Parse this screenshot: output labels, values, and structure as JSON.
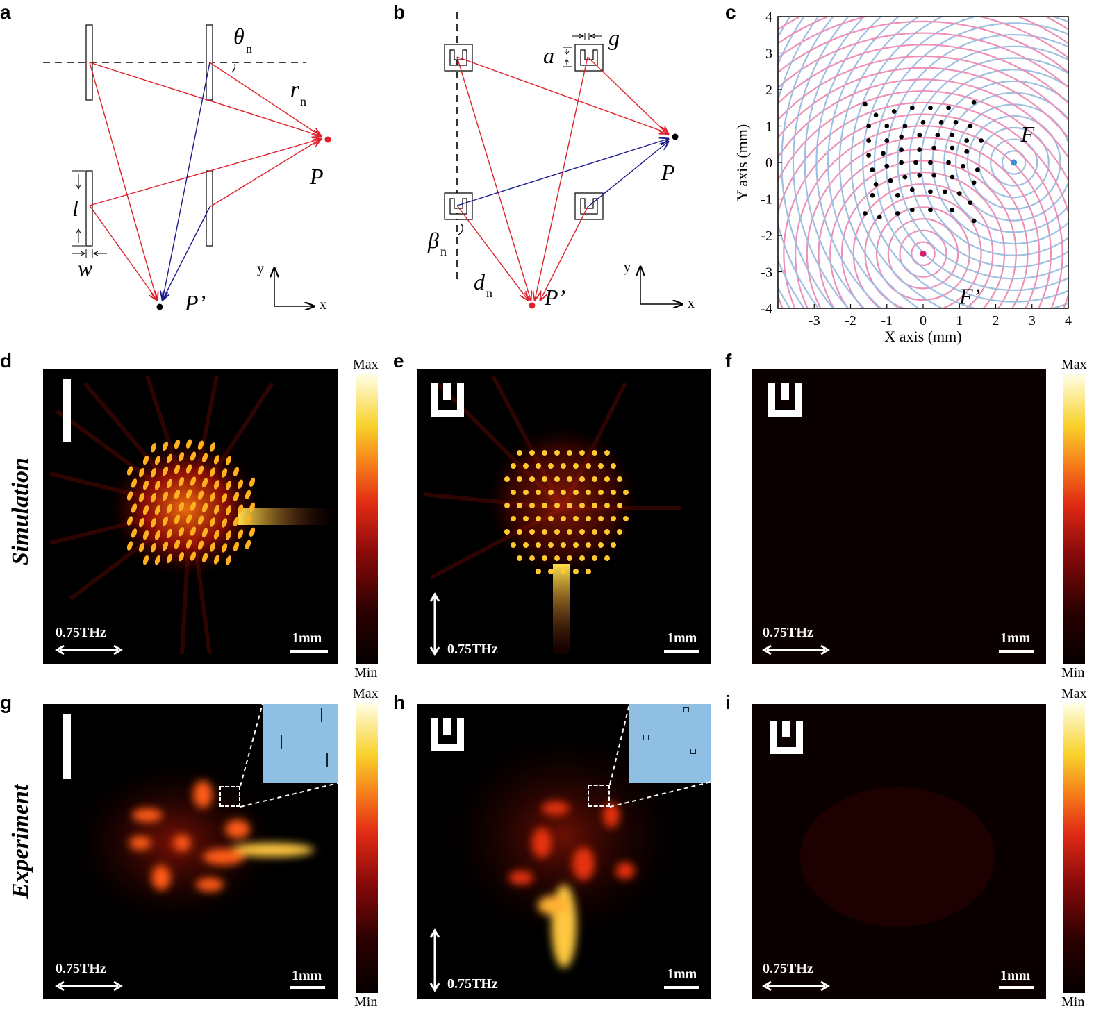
{
  "panel_labels": {
    "a": "a",
    "b": "b",
    "c": "c",
    "d": "d",
    "e": "e",
    "f": "f",
    "g": "g",
    "h": "h",
    "i": "i"
  },
  "row_labels": {
    "sim": "Simulation",
    "exp": "Experiment"
  },
  "diagram_a": {
    "theta": "θ",
    "theta_sub": "n",
    "r": "r",
    "r_sub": "n",
    "P": "P",
    "Pp": "P’",
    "l": "l",
    "w": "w",
    "y": "y",
    "x": "x"
  },
  "diagram_b": {
    "a": "a",
    "g": "g",
    "P": "P",
    "Pp": "P’",
    "beta": "β",
    "beta_sub": "n",
    "d": "d",
    "d_sub": "n",
    "y": "y",
    "x": "x"
  },
  "chart_c_text": {
    "F": "F",
    "Fp": "F’"
  },
  "field_panels": {
    "freq": "0.75THz",
    "scale": "1mm"
  },
  "colorbar": {
    "max": "Max",
    "min": "Min",
    "colors": [
      "#050000",
      "#8a0a0a",
      "#e02a14",
      "#f57a1a",
      "#f9d12a",
      "#ffffe8"
    ]
  },
  "colors": {
    "red_ray": "#e0202a",
    "blue_ray": "#1a1a8c",
    "ring_pink": "#ee8fb8",
    "ring_blue": "#9dbfe0",
    "focus_F": "#3b8fd6",
    "focus_Fp": "#d6206e"
  },
  "chart_data": {
    "type": "scatter",
    "xlabel": "X axis (mm)",
    "ylabel": "Y axis (mm)",
    "xlim": [
      -4,
      4
    ],
    "ylim": [
      -4,
      4
    ],
    "xticks": [
      -3,
      -2,
      -1,
      0,
      1,
      2,
      3,
      4
    ],
    "yticks": [
      -4,
      -3,
      -2,
      -1,
      0,
      1,
      2,
      3,
      4
    ],
    "focus_points": [
      {
        "name": "F",
        "x": 2.5,
        "y": 0
      },
      {
        "name": "F’",
        "x": 0,
        "y": -2.5
      }
    ],
    "points": [
      [
        -1.6,
        1.6
      ],
      [
        -1.3,
        1.3
      ],
      [
        -0.8,
        1.4
      ],
      [
        -0.3,
        1.5
      ],
      [
        0.2,
        1.5
      ],
      [
        0.7,
        1.5
      ],
      [
        1.4,
        1.65
      ],
      [
        -1.5,
        1.0
      ],
      [
        -1.0,
        1.0
      ],
      [
        -0.5,
        1.0
      ],
      [
        0,
        1.1
      ],
      [
        0.5,
        1.1
      ],
      [
        0.9,
        1.1
      ],
      [
        1.3,
        1.0
      ],
      [
        -1.5,
        0.6
      ],
      [
        -1.0,
        0.6
      ],
      [
        -0.6,
        0.7
      ],
      [
        -0.1,
        0.75
      ],
      [
        0.4,
        0.75
      ],
      [
        0.8,
        0.75
      ],
      [
        1.2,
        0.6
      ],
      [
        1.6,
        0.6
      ],
      [
        -1.5,
        0.2
      ],
      [
        -1.1,
        0.25
      ],
      [
        -0.6,
        0.35
      ],
      [
        -0.1,
        0.35
      ],
      [
        0.3,
        0.4
      ],
      [
        0.8,
        0.4
      ],
      [
        1.2,
        0.3
      ],
      [
        -1.4,
        -0.2
      ],
      [
        -1.0,
        -0.1
      ],
      [
        -0.6,
        0
      ],
      [
        -0.2,
        0
      ],
      [
        0.2,
        0
      ],
      [
        0.7,
        0
      ],
      [
        1.1,
        -0.1
      ],
      [
        1.5,
        -0.2
      ],
      [
        -1.3,
        -0.6
      ],
      [
        -0.9,
        -0.5
      ],
      [
        -0.5,
        -0.4
      ],
      [
        -0.1,
        -0.35
      ],
      [
        0.3,
        -0.35
      ],
      [
        0.8,
        -0.4
      ],
      [
        1.4,
        -0.55
      ],
      [
        -1.4,
        -0.9
      ],
      [
        -0.7,
        -0.9
      ],
      [
        -0.3,
        -0.75
      ],
      [
        0.2,
        -0.8
      ],
      [
        0.6,
        -0.8
      ],
      [
        1.0,
        -0.85
      ],
      [
        -1.6,
        -1.4
      ],
      [
        -1.2,
        -1.5
      ],
      [
        -0.7,
        -1.4
      ],
      [
        -0.3,
        -1.3
      ],
      [
        0.2,
        -1.3
      ],
      [
        0.8,
        -1.3
      ],
      [
        1.3,
        -1.1
      ],
      [
        1.4,
        -1.6
      ]
    ]
  }
}
